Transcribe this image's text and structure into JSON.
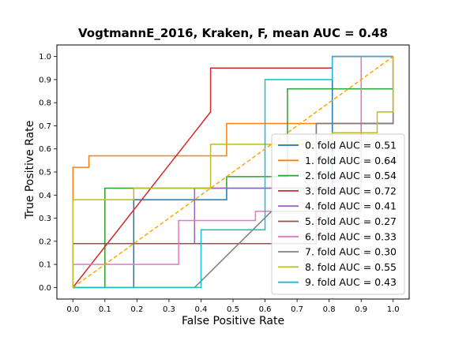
{
  "chart_data": {
    "type": "line",
    "title": "VogtmannE_2016, Kraken, F, mean AUC =  0.48",
    "xlabel": "False Positive Rate",
    "ylabel": "True Positive Rate",
    "xlim": [
      -0.05,
      1.05
    ],
    "ylim": [
      -0.05,
      1.05
    ],
    "x_ticks": [
      "0.0",
      "0.1",
      "0.2",
      "0.3",
      "0.4",
      "0.5",
      "0.6",
      "0.7",
      "0.8",
      "0.9",
      "1.0"
    ],
    "y_ticks": [
      "0.0",
      "0.1",
      "0.2",
      "0.3",
      "0.4",
      "0.5",
      "0.6",
      "0.7",
      "0.8",
      "0.9",
      "1.0"
    ],
    "grid": false,
    "legend_position": "lower-right",
    "diagonal": {
      "color": "#ffa500",
      "style": "dashed",
      "x": [
        0,
        1
      ],
      "y": [
        0,
        1
      ]
    },
    "series": [
      {
        "name": "0. fold AUC = 0.51",
        "color": "#1f77b4",
        "x": [
          0.0,
          0.0,
          0.19,
          0.19,
          0.48,
          0.48,
          0.81,
          0.81,
          1.0
        ],
        "y": [
          0.0,
          0.0,
          0.0,
          0.38,
          0.38,
          0.43,
          0.43,
          1.0,
          1.0
        ]
      },
      {
        "name": "1. fold AUC = 0.64",
        "color": "#ff7f0e",
        "x": [
          0.0,
          0.0,
          0.05,
          0.05,
          0.48,
          0.48,
          1.0,
          1.0
        ],
        "y": [
          0.0,
          0.52,
          0.52,
          0.57,
          0.57,
          0.71,
          0.71,
          1.0
        ]
      },
      {
        "name": "2. fold AUC = 0.54",
        "color": "#2ca02c",
        "x": [
          0.0,
          0.1,
          0.1,
          0.48,
          0.48,
          0.67,
          0.67,
          1.0,
          1.0
        ],
        "y": [
          0.0,
          0.0,
          0.43,
          0.43,
          0.48,
          0.48,
          0.86,
          0.86,
          1.0
        ]
      },
      {
        "name": "3. fold AUC = 0.72",
        "color": "#d62728",
        "x": [
          0.0,
          0.43,
          0.43,
          0.81,
          0.81,
          1.0
        ],
        "y": [
          0.0,
          0.76,
          0.95,
          0.95,
          1.0,
          1.0
        ]
      },
      {
        "name": "4. fold AUC = 0.41",
        "color": "#9467bd",
        "x": [
          0.0,
          0.0,
          0.38,
          0.38,
          0.48,
          0.48,
          0.9,
          0.9,
          1.0,
          1.0
        ],
        "y": [
          0.0,
          0.19,
          0.19,
          0.43,
          0.43,
          0.43,
          0.43,
          0.71,
          0.71,
          1.0
        ]
      },
      {
        "name": "5. fold AUC = 0.27",
        "color": "#8c564b",
        "x": [
          0.0,
          0.0,
          0.76,
          0.76,
          1.0,
          1.0
        ],
        "y": [
          0.0,
          0.19,
          0.19,
          0.71,
          0.71,
          1.0
        ]
      },
      {
        "name": "6. fold AUC = 0.33",
        "color": "#e377c2",
        "x": [
          0.0,
          0.0,
          0.33,
          0.33,
          0.57,
          0.57,
          0.9,
          0.9,
          1.0
        ],
        "y": [
          0.0,
          0.1,
          0.1,
          0.29,
          0.29,
          0.33,
          0.33,
          1.0,
          1.0
        ]
      },
      {
        "name": "7. fold AUC = 0.30",
        "color": "#7f7f7f",
        "x": [
          0.0,
          0.38,
          0.62,
          0.76,
          0.76,
          1.0,
          1.0
        ],
        "y": [
          0.0,
          0.0,
          0.33,
          0.33,
          0.71,
          0.71,
          1.0
        ]
      },
      {
        "name": "8. fold AUC = 0.55",
        "color": "#bcbd22",
        "x": [
          0.0,
          0.0,
          0.19,
          0.19,
          0.43,
          0.43,
          0.81,
          0.81,
          0.95,
          0.95,
          1.0,
          1.0
        ],
        "y": [
          0.0,
          0.38,
          0.38,
          0.43,
          0.43,
          0.62,
          0.62,
          0.67,
          0.67,
          0.76,
          0.76,
          1.0
        ]
      },
      {
        "name": "9. fold AUC = 0.43",
        "color": "#17becf",
        "x": [
          0.0,
          0.4,
          0.4,
          0.6,
          0.6,
          0.81,
          0.81,
          1.0
        ],
        "y": [
          0.0,
          0.0,
          0.25,
          0.25,
          0.9,
          0.9,
          1.0,
          1.0
        ]
      }
    ]
  }
}
